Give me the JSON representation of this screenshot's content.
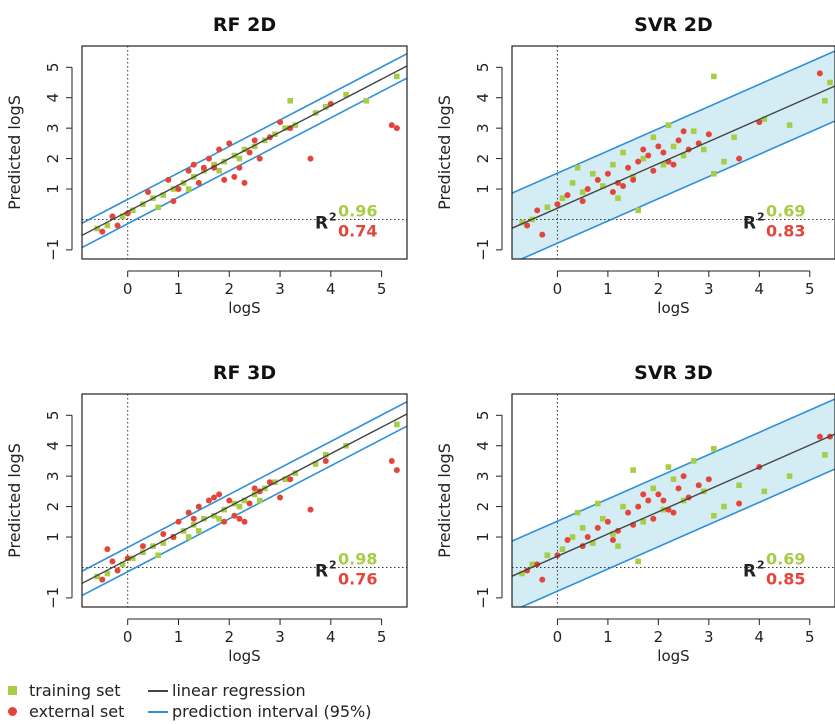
{
  "colors": {
    "training": "#a7cd47",
    "external": "#e3453b",
    "regression": "#444444",
    "interval_line": "#2f8fd8",
    "interval_fill": "#d4edf5"
  },
  "legend": {
    "training": "training set",
    "external": "external set",
    "regression": "linear regression",
    "interval": "prediction interval (95%)"
  },
  "chart_data": [
    {
      "type": "scatter",
      "title": "RF 2D",
      "xlabel": "logS",
      "ylabel": "Predicted logS",
      "xlim": [
        -0.9,
        5.5
      ],
      "ylim": [
        -1.3,
        5.7
      ],
      "xticks": [
        0,
        1,
        2,
        3,
        4,
        5
      ],
      "yticks": [
        -1,
        1,
        2,
        3,
        4,
        5
      ],
      "regression": {
        "slope": 0.87,
        "intercept": 0.26
      },
      "interval_halfwidth": 0.4,
      "interval_filled": false,
      "r2_label": "R",
      "r2_sup": "2",
      "r2_training": "0.96",
      "r2_external": "0.74",
      "series": [
        {
          "name": "training set",
          "points": [
            [
              -0.6,
              -0.3
            ],
            [
              -0.4,
              -0.2
            ],
            [
              -0.1,
              0.1
            ],
            [
              0.1,
              0.3
            ],
            [
              0.3,
              0.5
            ],
            [
              0.5,
              0.7
            ],
            [
              0.7,
              0.8
            ],
            [
              0.9,
              1.0
            ],
            [
              1.1,
              1.2
            ],
            [
              1.3,
              1.4
            ],
            [
              1.5,
              1.6
            ],
            [
              1.7,
              1.8
            ],
            [
              1.9,
              1.9
            ],
            [
              2.1,
              2.1
            ],
            [
              2.3,
              2.3
            ],
            [
              2.5,
              2.4
            ],
            [
              2.7,
              2.6
            ],
            [
              2.9,
              2.8
            ],
            [
              3.1,
              3.0
            ],
            [
              3.3,
              3.1
            ],
            [
              3.7,
              3.5
            ],
            [
              3.9,
              3.7
            ],
            [
              4.3,
              4.1
            ],
            [
              4.7,
              3.9
            ],
            [
              5.3,
              4.7
            ],
            [
              1.2,
              1.0
            ],
            [
              1.8,
              1.6
            ],
            [
              2.2,
              2.0
            ],
            [
              0.6,
              0.4
            ],
            [
              3.2,
              3.9
            ]
          ]
        },
        {
          "name": "external set",
          "points": [
            [
              -0.5,
              -0.4
            ],
            [
              -0.3,
              0.1
            ],
            [
              -0.2,
              -0.2
            ],
            [
              0.0,
              0.2
            ],
            [
              0.4,
              0.9
            ],
            [
              0.8,
              1.3
            ],
            [
              1.0,
              1.0
            ],
            [
              1.2,
              1.6
            ],
            [
              1.4,
              1.2
            ],
            [
              1.6,
              2.0
            ],
            [
              1.8,
              2.3
            ],
            [
              2.0,
              2.5
            ],
            [
              2.2,
              1.7
            ],
            [
              2.4,
              2.2
            ],
            [
              2.6,
              2.0
            ],
            [
              2.8,
              2.7
            ],
            [
              3.0,
              3.2
            ],
            [
              3.2,
              3.0
            ],
            [
              1.9,
              1.3
            ],
            [
              2.1,
              1.4
            ],
            [
              2.3,
              1.2
            ],
            [
              1.7,
              1.7
            ],
            [
              2.5,
              2.6
            ],
            [
              3.6,
              2.0
            ],
            [
              4.0,
              3.8
            ],
            [
              5.2,
              3.1
            ],
            [
              5.3,
              3.0
            ],
            [
              1.5,
              1.7
            ],
            [
              0.9,
              0.6
            ],
            [
              1.3,
              1.8
            ]
          ]
        }
      ]
    },
    {
      "type": "scatter",
      "title": "SVR 2D",
      "xlabel": "logS",
      "ylabel": "Predicted logS",
      "xlim": [
        -0.9,
        5.5
      ],
      "ylim": [
        -1.3,
        5.7
      ],
      "xticks": [
        0,
        1,
        2,
        3,
        4,
        5
      ],
      "yticks": [
        -1,
        1,
        2,
        3,
        4,
        5
      ],
      "regression": {
        "slope": 0.73,
        "intercept": 0.37
      },
      "interval_halfwidth": 1.15,
      "interval_filled": true,
      "r2_label": "R",
      "r2_sup": "2",
      "r2_training": "0.69",
      "r2_external": "0.83",
      "series": [
        {
          "name": "training set",
          "points": [
            [
              -0.7,
              -0.1
            ],
            [
              -0.5,
              0.0
            ],
            [
              -0.2,
              0.4
            ],
            [
              0.1,
              0.7
            ],
            [
              0.3,
              1.2
            ],
            [
              0.5,
              0.9
            ],
            [
              0.7,
              1.5
            ],
            [
              0.9,
              1.1
            ],
            [
              1.1,
              1.8
            ],
            [
              1.3,
              2.2
            ],
            [
              1.5,
              1.4
            ],
            [
              1.7,
              2.0
            ],
            [
              1.9,
              2.7
            ],
            [
              2.1,
              1.8
            ],
            [
              2.3,
              2.4
            ],
            [
              2.5,
              2.1
            ],
            [
              2.7,
              2.9
            ],
            [
              2.9,
              2.3
            ],
            [
              3.1,
              1.5
            ],
            [
              3.3,
              1.9
            ],
            [
              3.5,
              2.7
            ],
            [
              4.1,
              3.3
            ],
            [
              4.6,
              3.1
            ],
            [
              5.3,
              3.9
            ],
            [
              5.4,
              4.5
            ],
            [
              3.1,
              4.7
            ],
            [
              1.2,
              0.7
            ],
            [
              0.4,
              1.7
            ],
            [
              2.2,
              3.1
            ],
            [
              1.6,
              0.3
            ]
          ]
        },
        {
          "name": "external set",
          "points": [
            [
              -0.6,
              -0.2
            ],
            [
              -0.4,
              0.3
            ],
            [
              -0.3,
              -0.5
            ],
            [
              0.0,
              0.5
            ],
            [
              0.2,
              0.8
            ],
            [
              0.6,
              1.0
            ],
            [
              0.8,
              1.3
            ],
            [
              1.0,
              1.5
            ],
            [
              1.2,
              1.2
            ],
            [
              1.4,
              1.7
            ],
            [
              1.6,
              1.9
            ],
            [
              1.8,
              2.1
            ],
            [
              2.0,
              2.4
            ],
            [
              2.2,
              1.9
            ],
            [
              2.4,
              2.6
            ],
            [
              2.6,
              2.3
            ],
            [
              2.8,
              2.5
            ],
            [
              3.0,
              2.8
            ],
            [
              1.9,
              1.6
            ],
            [
              2.1,
              2.2
            ],
            [
              1.5,
              1.3
            ],
            [
              3.6,
              2.0
            ],
            [
              4.0,
              3.2
            ],
            [
              5.2,
              4.8
            ],
            [
              1.1,
              0.9
            ],
            [
              2.5,
              2.9
            ],
            [
              1.7,
              2.3
            ],
            [
              0.5,
              0.6
            ],
            [
              2.3,
              1.8
            ],
            [
              1.3,
              1.1
            ]
          ]
        }
      ]
    },
    {
      "type": "scatter",
      "title": "RF 3D",
      "xlabel": "logS",
      "ylabel": "Predicted logS",
      "xlim": [
        -0.9,
        5.5
      ],
      "ylim": [
        -1.3,
        5.7
      ],
      "xticks": [
        0,
        1,
        2,
        3,
        4,
        5
      ],
      "yticks": [
        -1,
        1,
        2,
        3,
        4,
        5
      ],
      "regression": {
        "slope": 0.87,
        "intercept": 0.26
      },
      "interval_halfwidth": 0.4,
      "interval_filled": false,
      "r2_label": "R",
      "r2_sup": "2",
      "r2_training": "0.98",
      "r2_external": "0.76",
      "series": [
        {
          "name": "training set",
          "points": [
            [
              -0.6,
              -0.3
            ],
            [
              -0.4,
              -0.2
            ],
            [
              -0.1,
              0.1
            ],
            [
              0.1,
              0.3
            ],
            [
              0.3,
              0.5
            ],
            [
              0.5,
              0.7
            ],
            [
              0.7,
              0.8
            ],
            [
              0.9,
              1.0
            ],
            [
              1.1,
              1.2
            ],
            [
              1.3,
              1.4
            ],
            [
              1.5,
              1.6
            ],
            [
              1.7,
              1.7
            ],
            [
              1.9,
              1.9
            ],
            [
              2.1,
              2.1
            ],
            [
              2.3,
              2.2
            ],
            [
              2.5,
              2.4
            ],
            [
              2.7,
              2.6
            ],
            [
              2.9,
              2.8
            ],
            [
              3.1,
              2.9
            ],
            [
              3.3,
              3.1
            ],
            [
              3.7,
              3.4
            ],
            [
              3.9,
              3.7
            ],
            [
              4.3,
              4.0
            ],
            [
              5.3,
              4.7
            ],
            [
              1.2,
              1.0
            ],
            [
              1.8,
              1.6
            ],
            [
              2.2,
              2.0
            ],
            [
              0.6,
              0.4
            ],
            [
              2.6,
              2.2
            ],
            [
              1.4,
              1.2
            ]
          ]
        },
        {
          "name": "external set",
          "points": [
            [
              -0.5,
              -0.4
            ],
            [
              -0.3,
              0.2
            ],
            [
              -0.2,
              -0.1
            ],
            [
              0.0,
              0.3
            ],
            [
              0.3,
              0.7
            ],
            [
              0.7,
              1.1
            ],
            [
              1.0,
              1.5
            ],
            [
              1.2,
              1.8
            ],
            [
              1.4,
              2.0
            ],
            [
              1.6,
              2.2
            ],
            [
              1.8,
              2.4
            ],
            [
              2.0,
              2.2
            ],
            [
              2.2,
              1.6
            ],
            [
              2.4,
              2.1
            ],
            [
              2.6,
              2.5
            ],
            [
              2.8,
              2.8
            ],
            [
              3.0,
              2.3
            ],
            [
              3.2,
              2.9
            ],
            [
              1.9,
              1.5
            ],
            [
              2.1,
              1.7
            ],
            [
              2.3,
              1.5
            ],
            [
              1.7,
              2.3
            ],
            [
              2.5,
              2.6
            ],
            [
              3.6,
              1.9
            ],
            [
              3.9,
              3.5
            ],
            [
              5.2,
              3.5
            ],
            [
              5.3,
              3.2
            ],
            [
              -0.4,
              0.6
            ],
            [
              0.9,
              1.0
            ],
            [
              1.3,
              1.6
            ]
          ]
        }
      ]
    },
    {
      "type": "scatter",
      "title": "SVR 3D",
      "xlabel": "logS",
      "ylabel": "Predicted logS",
      "xlim": [
        -0.9,
        5.5
      ],
      "ylim": [
        -1.3,
        5.7
      ],
      "xticks": [
        0,
        1,
        2,
        3,
        4,
        5
      ],
      "yticks": [
        -1,
        1,
        2,
        3,
        4,
        5
      ],
      "regression": {
        "slope": 0.73,
        "intercept": 0.37
      },
      "interval_halfwidth": 1.15,
      "interval_filled": true,
      "r2_label": "R",
      "r2_sup": "2",
      "r2_training": "0.69",
      "r2_external": "0.85",
      "series": [
        {
          "name": "training set",
          "points": [
            [
              -0.7,
              -0.2
            ],
            [
              -0.5,
              0.1
            ],
            [
              -0.2,
              0.4
            ],
            [
              0.1,
              0.6
            ],
            [
              0.3,
              1.0
            ],
            [
              0.5,
              1.3
            ],
            [
              0.7,
              0.8
            ],
            [
              0.9,
              1.6
            ],
            [
              1.1,
              1.1
            ],
            [
              1.3,
              2.0
            ],
            [
              1.5,
              3.2
            ],
            [
              1.7,
              1.5
            ],
            [
              1.9,
              2.6
            ],
            [
              2.1,
              1.9
            ],
            [
              2.3,
              2.9
            ],
            [
              2.5,
              2.2
            ],
            [
              2.7,
              3.5
            ],
            [
              2.9,
              2.5
            ],
            [
              3.1,
              1.7
            ],
            [
              3.3,
              2.0
            ],
            [
              3.6,
              2.7
            ],
            [
              4.1,
              2.5
            ],
            [
              4.6,
              3.0
            ],
            [
              5.3,
              3.7
            ],
            [
              1.2,
              0.7
            ],
            [
              0.4,
              1.8
            ],
            [
              2.2,
              3.3
            ],
            [
              1.6,
              0.2
            ],
            [
              3.1,
              3.9
            ],
            [
              0.8,
              2.1
            ]
          ]
        },
        {
          "name": "external set",
          "points": [
            [
              -0.6,
              -0.1
            ],
            [
              -0.4,
              0.1
            ],
            [
              -0.3,
              -0.4
            ],
            [
              0.0,
              0.4
            ],
            [
              0.2,
              0.9
            ],
            [
              0.6,
              1.0
            ],
            [
              0.8,
              1.3
            ],
            [
              1.0,
              1.5
            ],
            [
              1.2,
              1.2
            ],
            [
              1.4,
              1.8
            ],
            [
              1.6,
              2.0
            ],
            [
              1.8,
              2.2
            ],
            [
              2.0,
              2.4
            ],
            [
              2.2,
              1.9
            ],
            [
              2.4,
              2.6
            ],
            [
              2.6,
              2.3
            ],
            [
              2.8,
              2.7
            ],
            [
              3.0,
              2.9
            ],
            [
              1.9,
              1.6
            ],
            [
              2.1,
              2.2
            ],
            [
              1.5,
              1.4
            ],
            [
              3.6,
              2.1
            ],
            [
              4.0,
              3.3
            ],
            [
              5.2,
              4.3
            ],
            [
              5.4,
              4.3
            ],
            [
              1.1,
              0.9
            ],
            [
              2.5,
              3.0
            ],
            [
              1.7,
              2.4
            ],
            [
              0.5,
              0.7
            ],
            [
              2.3,
              1.8
            ]
          ]
        }
      ]
    }
  ]
}
